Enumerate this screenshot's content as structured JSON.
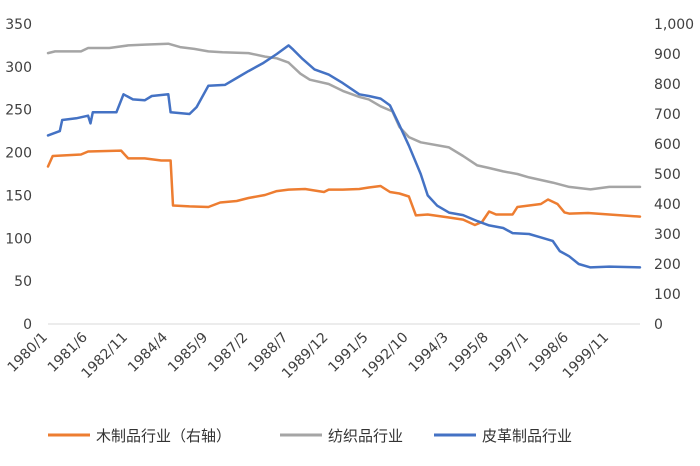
{
  "chart_data": {
    "type": "line",
    "x_tick_labels": [
      "1980/1",
      "1981/6",
      "1982/11",
      "1984/4",
      "1985/9",
      "1987/2",
      "1988/7",
      "1989/12",
      "1991/5",
      "1992/10",
      "1994/3",
      "1995/8",
      "1997/1",
      "1998/6",
      "1999/11"
    ],
    "x_range": [
      "1980/1",
      "2000/12"
    ],
    "left_axis": {
      "min": 0,
      "max": 350,
      "step": 50,
      "tick_labels": [
        "0",
        "50",
        "100",
        "150",
        "200",
        "250",
        "300",
        "350"
      ]
    },
    "right_axis": {
      "min": 0,
      "max": 1000,
      "step": 100,
      "tick_labels": [
        "0",
        "100",
        "200",
        "300",
        "400",
        "500",
        "600",
        "700",
        "800",
        "900",
        "1,000"
      ]
    },
    "grid": false,
    "legend_position": "bottom",
    "series": [
      {
        "name": "木制品行业（右轴）",
        "axis": "right",
        "color": "#ED7D31",
        "points": [
          [
            "1980/1",
            525
          ],
          [
            "1980/3",
            560
          ],
          [
            "1981/3",
            565
          ],
          [
            "1981/6",
            575
          ],
          [
            "1982/8",
            578
          ],
          [
            "1982/11",
            552
          ],
          [
            "1983/6",
            552
          ],
          [
            "1984/1",
            545
          ],
          [
            "1984/5",
            545
          ],
          [
            "1984/6",
            395
          ],
          [
            "1985/1",
            392
          ],
          [
            "1985/9",
            390
          ],
          [
            "1986/2",
            405
          ],
          [
            "1986/9",
            410
          ],
          [
            "1987/2",
            420
          ],
          [
            "1987/9",
            430
          ],
          [
            "1988/2",
            443
          ],
          [
            "1988/7",
            448
          ],
          [
            "1989/2",
            450
          ],
          [
            "1989/10",
            440
          ],
          [
            "1989/12",
            448
          ],
          [
            "1990/6",
            448
          ],
          [
            "1991/1",
            450
          ],
          [
            "1991/5",
            455
          ],
          [
            "1991/10",
            460
          ],
          [
            "1992/2",
            440
          ],
          [
            "1992/6",
            435
          ],
          [
            "1992/10",
            425
          ],
          [
            "1993/1",
            362
          ],
          [
            "1993/6",
            365
          ],
          [
            "1994/3",
            355
          ],
          [
            "1994/9",
            348
          ],
          [
            "1995/2",
            330
          ],
          [
            "1995/5",
            340
          ],
          [
            "1995/8",
            375
          ],
          [
            "1995/11",
            365
          ],
          [
            "1996/6",
            365
          ],
          [
            "1996/8",
            390
          ],
          [
            "1997/1",
            395
          ],
          [
            "1997/6",
            400
          ],
          [
            "1997/9",
            415
          ],
          [
            "1998/1",
            400
          ],
          [
            "1998/4",
            372
          ],
          [
            "1998/6",
            368
          ],
          [
            "1999/2",
            370
          ],
          [
            "1999/11",
            365
          ],
          [
            "2000/12",
            358
          ]
        ]
      },
      {
        "name": "纺织品行业",
        "axis": "left",
        "color": "#A5A5A5",
        "points": [
          [
            "1980/1",
            316
          ],
          [
            "1980/4",
            318
          ],
          [
            "1981/3",
            318
          ],
          [
            "1981/6",
            322
          ],
          [
            "1982/3",
            322
          ],
          [
            "1982/11",
            325
          ],
          [
            "1983/6",
            326
          ],
          [
            "1984/4",
            327
          ],
          [
            "1984/9",
            323
          ],
          [
            "1985/3",
            321
          ],
          [
            "1985/9",
            318
          ],
          [
            "1986/3",
            317
          ],
          [
            "1987/2",
            316
          ],
          [
            "1987/9",
            312
          ],
          [
            "1988/2",
            310
          ],
          [
            "1988/7",
            305
          ],
          [
            "1988/12",
            292
          ],
          [
            "1989/4",
            285
          ],
          [
            "1989/12",
            280
          ],
          [
            "1990/6",
            272
          ],
          [
            "1991/1",
            265
          ],
          [
            "1991/5",
            262
          ],
          [
            "1991/10",
            254
          ],
          [
            "1992/3",
            248
          ],
          [
            "1992/6",
            230
          ],
          [
            "1992/10",
            218
          ],
          [
            "1993/3",
            212
          ],
          [
            "1994/3",
            206
          ],
          [
            "1994/9",
            196
          ],
          [
            "1995/3",
            185
          ],
          [
            "1995/8",
            182
          ],
          [
            "1996/2",
            178
          ],
          [
            "1996/8",
            175
          ],
          [
            "1997/1",
            171
          ],
          [
            "1997/6",
            168
          ],
          [
            "1997/11",
            165
          ],
          [
            "1998/6",
            160
          ],
          [
            "1999/3",
            157
          ],
          [
            "1999/11",
            160
          ],
          [
            "2000/12",
            160
          ]
        ]
      },
      {
        "name": "皮革制品行业",
        "axis": "left",
        "color": "#4472C4",
        "points": [
          [
            "1980/1",
            220
          ],
          [
            "1980/6",
            225
          ],
          [
            "1980/7",
            238
          ],
          [
            "1981/1",
            240
          ],
          [
            "1981/6",
            243
          ],
          [
            "1981/7",
            234
          ],
          [
            "1981/8",
            247
          ],
          [
            "1982/6",
            247
          ],
          [
            "1982/9",
            268
          ],
          [
            "1983/1",
            262
          ],
          [
            "1983/6",
            261
          ],
          [
            "1983/9",
            266
          ],
          [
            "1984/4",
            268
          ],
          [
            "1984/5",
            247
          ],
          [
            "1985/1",
            245
          ],
          [
            "1985/4",
            253
          ],
          [
            "1985/9",
            278
          ],
          [
            "1986/4",
            279
          ],
          [
            "1986/9",
            287
          ],
          [
            "1987/2",
            295
          ],
          [
            "1987/8",
            304
          ],
          [
            "1988/2",
            315
          ],
          [
            "1988/7",
            325
          ],
          [
            "1988/9",
            320
          ],
          [
            "1989/1",
            309
          ],
          [
            "1989/6",
            297
          ],
          [
            "1989/12",
            291
          ],
          [
            "1990/6",
            281
          ],
          [
            "1991/1",
            268
          ],
          [
            "1991/5",
            266
          ],
          [
            "1991/10",
            263
          ],
          [
            "1992/2",
            255
          ],
          [
            "1992/6",
            232
          ],
          [
            "1992/10",
            208
          ],
          [
            "1993/3",
            175
          ],
          [
            "1993/6",
            150
          ],
          [
            "1993/10",
            138
          ],
          [
            "1994/3",
            130
          ],
          [
            "1994/9",
            127
          ],
          [
            "1995/3",
            120
          ],
          [
            "1995/8",
            115
          ],
          [
            "1996/2",
            112
          ],
          [
            "1996/6",
            106
          ],
          [
            "1997/1",
            105
          ],
          [
            "1997/6",
            101
          ],
          [
            "1997/11",
            97
          ],
          [
            "1998/2",
            85
          ],
          [
            "1998/6",
            79
          ],
          [
            "1998/10",
            70
          ],
          [
            "1999/3",
            66
          ],
          [
            "1999/11",
            67
          ],
          [
            "2000/12",
            66
          ]
        ]
      }
    ]
  }
}
